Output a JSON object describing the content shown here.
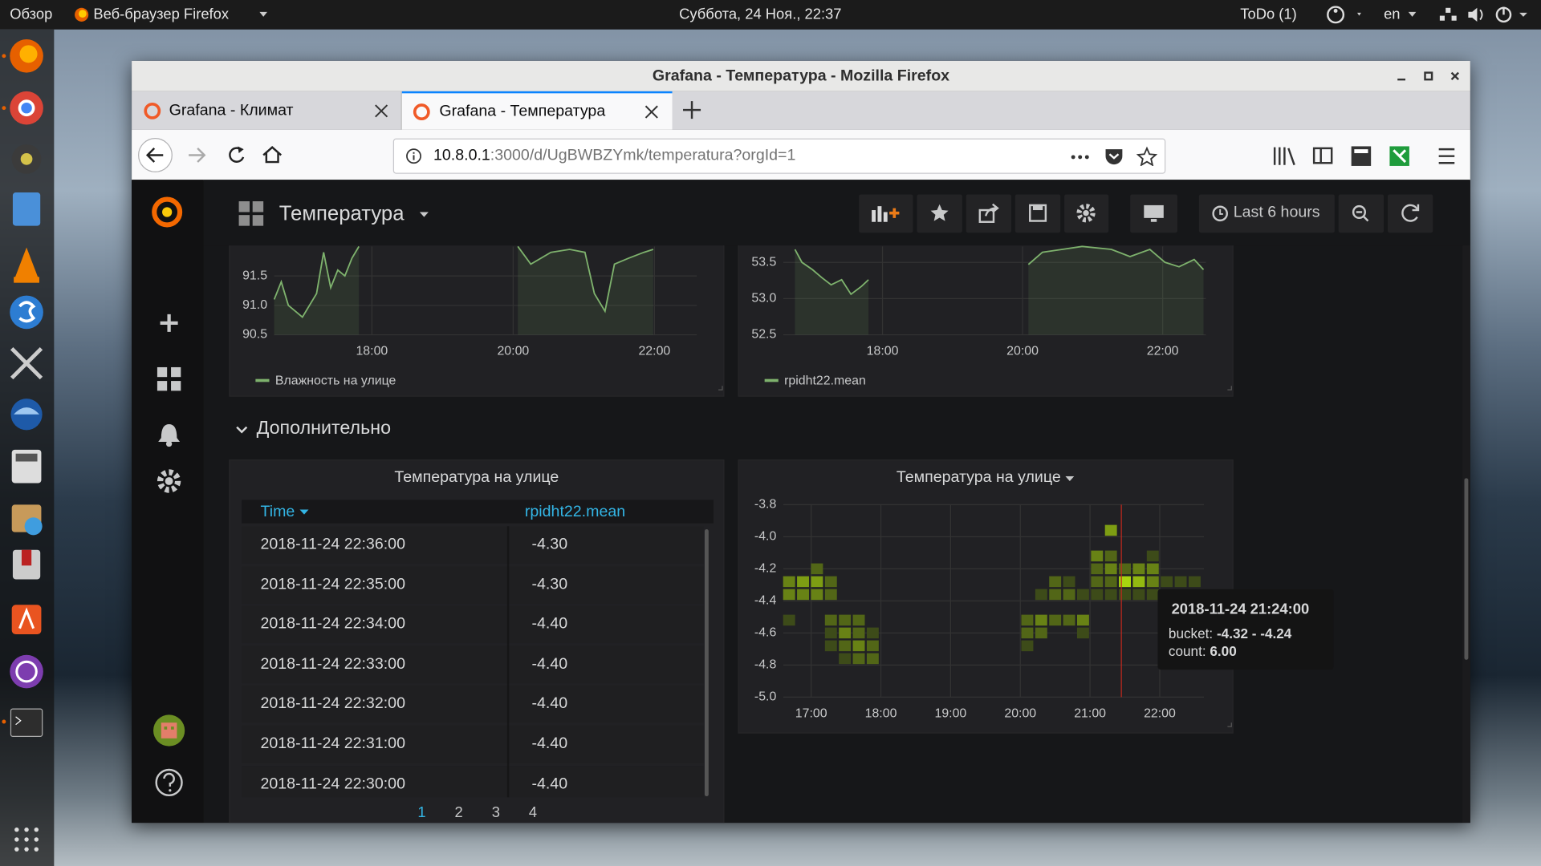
{
  "desktop": {
    "activities": "Обзор",
    "app_menu": "Веб-браузер Firefox",
    "clock": "Суббота, 24 Ноя., 22:37",
    "todo": "ToDo (1)",
    "language": "en"
  },
  "browser": {
    "window_title": "Grafana - Температура - Mozilla Firefox",
    "tabs": [
      "Grafana - Климат",
      "Grafana - Температура"
    ],
    "url_host": "10.8.0.1",
    "url_path": ":3000/d/UgBWBZYmk/temperatura?orgId=1"
  },
  "grafana": {
    "dashboard_title": "Температура",
    "time_range": "Last 6 hours",
    "row_title": "Дополнительно"
  },
  "chart_data": [
    {
      "type": "line",
      "xlim": [
        "16:37",
        "22:36"
      ],
      "xticks": [
        "18:00",
        "20:00",
        "22:00"
      ],
      "ylim": [
        90.5,
        92.0
      ],
      "yticks": [
        90.5,
        {
          "value": 91,
          "label": "91.0"
        },
        91.5
      ],
      "grid": true,
      "x": [
        "16:37",
        "16:43",
        "16:49",
        "16:55",
        "17:01",
        "17:07",
        "17:13",
        "17:19",
        "17:25",
        "17:31",
        "17:37",
        "17:43",
        "17:49",
        "19:00",
        "20:04",
        "20:15",
        "20:32",
        "20:48",
        "21:01",
        "21:09",
        "21:18",
        "21:26",
        "21:38",
        "21:51",
        "21:59"
      ],
      "series": [
        {
          "name": "Влажность на улице",
          "color": "#7eb26d",
          "values": [
            91.1,
            91.4,
            91.0,
            90.9,
            90.8,
            91.0,
            91.2,
            91.9,
            91.3,
            91.6,
            91.5,
            91.8,
            92.0,
            null,
            92.0,
            91.7,
            91.9,
            91.95,
            91.9,
            91.2,
            90.9,
            91.7,
            91.8,
            91.9,
            91.95
          ]
        }
      ]
    },
    {
      "type": "line",
      "xlim": [
        "16:35",
        "22:37"
      ],
      "xticks": [
        "18:00",
        "20:00",
        "22:00"
      ],
      "ylim": [
        52.5,
        53.72
      ],
      "yticks": [
        52.5,
        {
          "value": 53,
          "label": "53.0"
        },
        53.5
      ],
      "grid": true,
      "x": [
        "16:45",
        "16:51",
        "17:00",
        "17:08",
        "17:16",
        "17:25",
        "17:33",
        "17:42",
        "17:48",
        "19:00",
        "20:05",
        "20:17",
        "20:34",
        "20:51",
        "21:16",
        "21:32",
        "21:49",
        "22:02",
        "22:14",
        "22:27",
        "22:35"
      ],
      "series": [
        {
          "name": "rpidht22.mean",
          "color": "#7eb26d",
          "values": [
            53.68,
            53.5,
            53.4,
            53.29,
            53.19,
            53.26,
            53.06,
            53.17,
            53.26,
            null,
            53.47,
            53.64,
            53.68,
            53.72,
            53.68,
            53.58,
            53.68,
            53.5,
            53.44,
            53.54,
            53.4
          ]
        }
      ]
    },
    {
      "type": "heatmap",
      "title": "Температура на улице",
      "xlim": [
        "16:36",
        "22:38"
      ],
      "xticks": [
        "17:00",
        "18:00",
        "19:00",
        "20:00",
        "21:00",
        "22:00"
      ],
      "ylim": [
        -5.0,
        -3.8
      ],
      "yticks": [
        {
          "value": -5,
          "label": "-5.0"
        },
        -4.8,
        -4.6,
        -4.4,
        -4.2,
        {
          "value": -4,
          "label": "-4.0"
        },
        -3.8
      ],
      "grid": true,
      "colors": [
        "#3d4b19",
        "#a8d40f"
      ],
      "cells": [
        {
          "x": "16:35",
          "y": -4.32,
          "count": 3
        },
        {
          "x": "16:35",
          "y": -4.4,
          "count": 3
        },
        {
          "x": "16:35",
          "y": -4.56,
          "count": 1
        },
        {
          "x": "16:47",
          "y": -4.32,
          "count": 4
        },
        {
          "x": "16:47",
          "y": -4.4,
          "count": 3
        },
        {
          "x": "16:59",
          "y": -4.24,
          "count": 2
        },
        {
          "x": "16:59",
          "y": -4.32,
          "count": 4
        },
        {
          "x": "16:59",
          "y": -4.4,
          "count": 3
        },
        {
          "x": "17:11",
          "y": -4.32,
          "count": 2
        },
        {
          "x": "17:11",
          "y": -4.4,
          "count": 2
        },
        {
          "x": "17:11",
          "y": -4.56,
          "count": 2
        },
        {
          "x": "17:11",
          "y": -4.64,
          "count": 1
        },
        {
          "x": "17:11",
          "y": -4.72,
          "count": 1
        },
        {
          "x": "17:23",
          "y": -4.56,
          "count": 2
        },
        {
          "x": "17:23",
          "y": -4.64,
          "count": 3
        },
        {
          "x": "17:23",
          "y": -4.72,
          "count": 2
        },
        {
          "x": "17:23",
          "y": -4.8,
          "count": 1
        },
        {
          "x": "17:35",
          "y": -4.56,
          "count": 2
        },
        {
          "x": "17:35",
          "y": -4.64,
          "count": 2
        },
        {
          "x": "17:35",
          "y": -4.72,
          "count": 3
        },
        {
          "x": "17:35",
          "y": -4.8,
          "count": 2
        },
        {
          "x": "17:47",
          "y": -4.64,
          "count": 1
        },
        {
          "x": "17:47",
          "y": -4.72,
          "count": 2
        },
        {
          "x": "17:47",
          "y": -4.8,
          "count": 2
        },
        {
          "x": "20:00",
          "y": -4.56,
          "count": 2
        },
        {
          "x": "20:00",
          "y": -4.64,
          "count": 2
        },
        {
          "x": "20:00",
          "y": -4.72,
          "count": 1
        },
        {
          "x": "20:12",
          "y": -4.4,
          "count": 1
        },
        {
          "x": "20:12",
          "y": -4.56,
          "count": 3
        },
        {
          "x": "20:12",
          "y": -4.64,
          "count": 2
        },
        {
          "x": "20:24",
          "y": -4.32,
          "count": 2
        },
        {
          "x": "20:24",
          "y": -4.4,
          "count": 2
        },
        {
          "x": "20:24",
          "y": -4.56,
          "count": 2
        },
        {
          "x": "20:36",
          "y": -4.32,
          "count": 1
        },
        {
          "x": "20:36",
          "y": -4.4,
          "count": 2
        },
        {
          "x": "20:36",
          "y": -4.56,
          "count": 2
        },
        {
          "x": "20:48",
          "y": -4.4,
          "count": 1
        },
        {
          "x": "20:48",
          "y": -4.56,
          "count": 3
        },
        {
          "x": "20:48",
          "y": -4.64,
          "count": 1
        },
        {
          "x": "21:00",
          "y": -4.16,
          "count": 3
        },
        {
          "x": "21:00",
          "y": -4.24,
          "count": 2
        },
        {
          "x": "21:00",
          "y": -4.32,
          "count": 2
        },
        {
          "x": "21:00",
          "y": -4.4,
          "count": 1
        },
        {
          "x": "21:12",
          "y": -4.0,
          "count": 4
        },
        {
          "x": "21:12",
          "y": -4.16,
          "count": 2
        },
        {
          "x": "21:12",
          "y": -4.24,
          "count": 3
        },
        {
          "x": "21:12",
          "y": -4.32,
          "count": 2
        },
        {
          "x": "21:12",
          "y": -4.4,
          "count": 1
        },
        {
          "x": "21:24",
          "y": -4.24,
          "count": 2
        },
        {
          "x": "21:24",
          "y": -4.32,
          "count": 6
        },
        {
          "x": "21:24",
          "y": -4.4,
          "count": 1
        },
        {
          "x": "21:36",
          "y": -4.24,
          "count": 3
        },
        {
          "x": "21:36",
          "y": -4.32,
          "count": 5
        },
        {
          "x": "21:36",
          "y": -4.4,
          "count": 1
        },
        {
          "x": "21:48",
          "y": -4.16,
          "count": 1
        },
        {
          "x": "21:48",
          "y": -4.24,
          "count": 3
        },
        {
          "x": "21:48",
          "y": -4.32,
          "count": 3
        },
        {
          "x": "21:48",
          "y": -4.4,
          "count": 1
        },
        {
          "x": "22:00",
          "y": -4.32,
          "count": 1
        },
        {
          "x": "22:12",
          "y": -4.32,
          "count": 1
        },
        {
          "x": "22:24",
          "y": -4.32,
          "count": 1
        }
      ]
    }
  ],
  "table": {
    "title": "Температура на улице",
    "columns": [
      "Time",
      "rpidht22.mean"
    ],
    "rows": [
      [
        "2018-11-24 22:36:00",
        "-4.30"
      ],
      [
        "2018-11-24 22:35:00",
        "-4.30"
      ],
      [
        "2018-11-24 22:34:00",
        "-4.40"
      ],
      [
        "2018-11-24 22:33:00",
        "-4.40"
      ],
      [
        "2018-11-24 22:32:00",
        "-4.40"
      ],
      [
        "2018-11-24 22:31:00",
        "-4.40"
      ],
      [
        "2018-11-24 22:30:00",
        "-4.40"
      ]
    ],
    "pages": [
      1,
      2,
      3,
      4
    ]
  },
  "tooltip": {
    "time": "2018-11-24 21:24:00",
    "bucket_label": "bucket:",
    "bucket": "-4.32 - -4.24",
    "count_label": "count:",
    "count": "6.00"
  }
}
